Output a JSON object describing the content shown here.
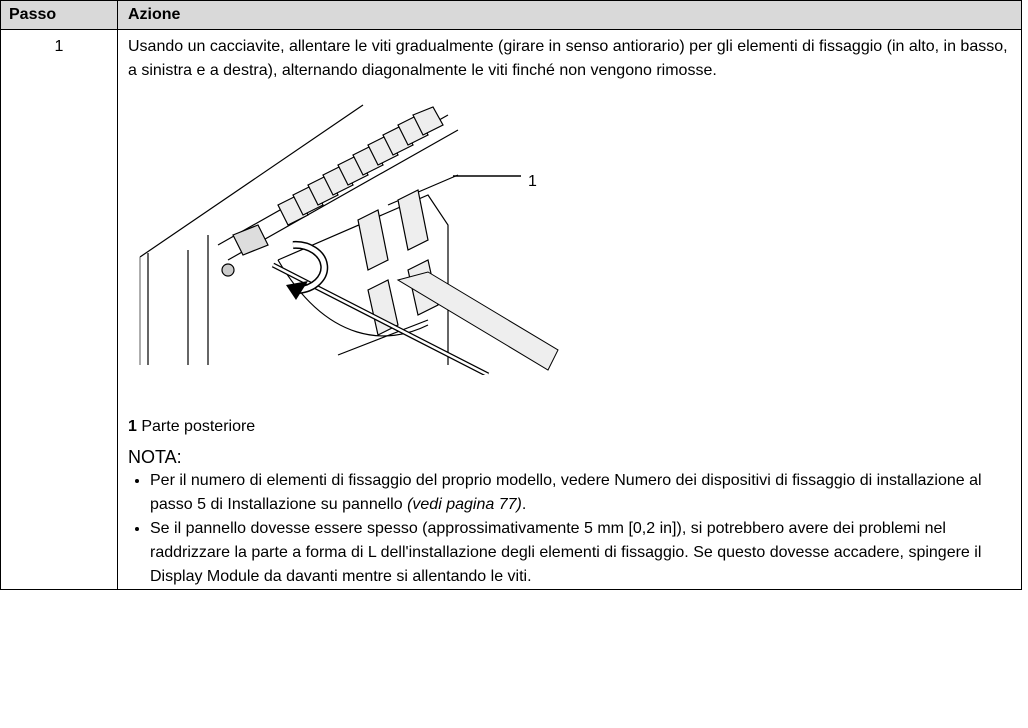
{
  "table": {
    "headers": [
      "Passo",
      "Azione"
    ],
    "rows": [
      {
        "step": "1",
        "text": "Usando un cacciavite, allentare le viti gradualmente (girare in senso antiorario) per gli elementi di fissaggio (in alto, in basso, a sinistra e a destra), alternando diagonalmente le viti finché non vengono rimosse.",
        "figure_callout": "1",
        "caption_number": "1",
        "caption_text": "Parte posteriore",
        "note_title": "NOTA:",
        "notes": [
          {
            "text": "Per il numero di elementi di fissaggio del proprio modello, vedere Numero dei dispositivi di fissaggio di installazione al passo 5 di Installazione su pannello",
            "link": "(vedi pagina 77)",
            "end": "."
          },
          {
            "text": "Se il pannello dovesse essere spesso (approssimativamente 5 mm [0,2 in]), si potrebbero avere dei problemi nel raddrizzare la parte a forma di L dell'installazione degli elementi di fissaggio. Se questo dovesse accadere, spingere il Display Module da davanti mentre si allentando le viti."
          }
        ]
      }
    ]
  }
}
